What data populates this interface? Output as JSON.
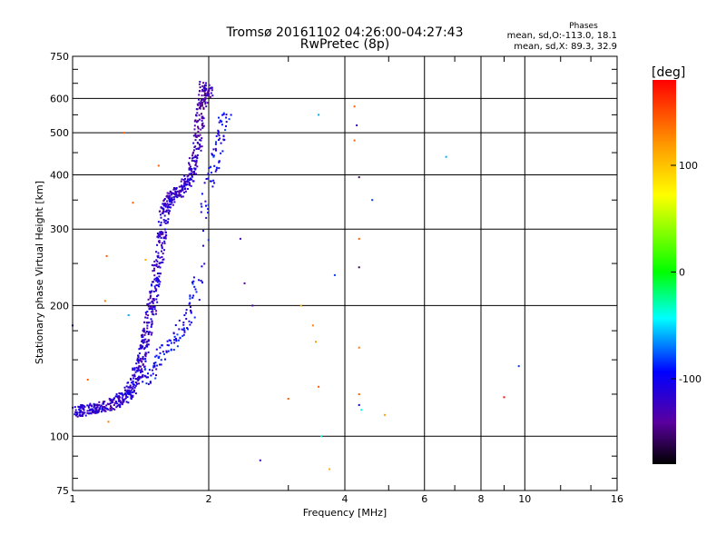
{
  "chart_data": {
    "type": "scatter",
    "title": "Tromsø 20161102 04:26:00-04:27:43",
    "subtitle": "RwPretec (8p)",
    "xlabel": "Frequency [MHz]",
    "ylabel": "Stationary phase Virtual Height [km]",
    "x_scale": "log",
    "y_scale": "log",
    "xlim": [
      1,
      16
    ],
    "ylim": [
      75,
      750
    ],
    "x_ticks": [
      1,
      2,
      4,
      6,
      8,
      10,
      16
    ],
    "x_tick_labels": [
      "1",
      "2",
      "4",
      "6",
      "8",
      "10",
      "16"
    ],
    "y_ticks": [
      75,
      100,
      200,
      300,
      400,
      500,
      600,
      750
    ],
    "y_tick_labels": [
      "75",
      "100",
      "200",
      "300",
      "400",
      "500",
      "600",
      "750"
    ],
    "grid": true,
    "phases_header": "Phases",
    "phases_lines": [
      "mean, sd,O:-113.0, 18.1",
      "mean, sd,X:  89.3, 32.9"
    ],
    "colorbar": {
      "label": "[deg]",
      "range": [
        -180,
        180
      ],
      "ticks": [
        100,
        0,
        -100
      ],
      "tick_labels": [
        "100",
        "0",
        "-100"
      ]
    },
    "O_trace": [
      [
        1.02,
        115,
        -110
      ],
      [
        1.05,
        114,
        -112
      ],
      [
        1.08,
        115,
        -108
      ],
      [
        1.12,
        116,
        -115
      ],
      [
        1.16,
        117,
        -110
      ],
      [
        1.2,
        118,
        -120
      ],
      [
        1.25,
        120,
        -112
      ],
      [
        1.28,
        122,
        -118
      ],
      [
        1.32,
        124,
        -110
      ],
      [
        1.35,
        128,
        -108
      ],
      [
        1.38,
        135,
        -115
      ],
      [
        1.4,
        142,
        -112
      ],
      [
        1.42,
        150,
        -118
      ],
      [
        1.44,
        160,
        -110
      ],
      [
        1.46,
        170,
        -115
      ],
      [
        1.48,
        185,
        -112
      ],
      [
        1.5,
        200,
        -118
      ],
      [
        1.52,
        220,
        -110
      ],
      [
        1.54,
        245,
        -115
      ],
      [
        1.56,
        270,
        -112
      ],
      [
        1.58,
        300,
        -118
      ],
      [
        1.6,
        330,
        -110
      ],
      [
        1.63,
        345,
        -115
      ],
      [
        1.66,
        355,
        -120
      ],
      [
        1.7,
        362,
        -112
      ],
      [
        1.75,
        372,
        -118
      ],
      [
        1.8,
        388,
        -110
      ],
      [
        1.84,
        410,
        -115
      ],
      [
        1.88,
        450,
        -120
      ],
      [
        1.9,
        500,
        -125
      ],
      [
        1.92,
        550,
        -130
      ],
      [
        1.94,
        600,
        -135
      ],
      [
        1.96,
        640,
        -130
      ],
      [
        2.0,
        620,
        -128
      ]
    ],
    "X_trace": [
      [
        1.45,
        135,
        -100
      ],
      [
        1.5,
        140,
        -95
      ],
      [
        1.55,
        150,
        -98
      ],
      [
        1.62,
        160,
        -100
      ],
      [
        1.7,
        170,
        -95
      ],
      [
        1.78,
        180,
        -98
      ],
      [
        1.85,
        200,
        -100
      ],
      [
        1.9,
        230,
        -95
      ],
      [
        2.0,
        380,
        -100
      ],
      [
        2.05,
        420,
        -96
      ],
      [
        2.1,
        470,
        -100
      ],
      [
        2.15,
        520,
        -95
      ],
      [
        2.2,
        560,
        -98
      ]
    ],
    "scatter_points": [
      [
        1.0,
        180,
        -110
      ],
      [
        1.08,
        135,
        150
      ],
      [
        1.18,
        205,
        140
      ],
      [
        1.19,
        260,
        150
      ],
      [
        1.2,
        108,
        140
      ],
      [
        1.3,
        500,
        150
      ],
      [
        1.33,
        190,
        -60
      ],
      [
        1.36,
        345,
        150
      ],
      [
        1.45,
        255,
        120
      ],
      [
        1.55,
        420,
        150
      ],
      [
        2.35,
        285,
        -120
      ],
      [
        2.4,
        225,
        -130
      ],
      [
        2.5,
        200,
        -130
      ],
      [
        2.6,
        88,
        -120
      ],
      [
        3.0,
        122,
        150
      ],
      [
        3.2,
        200,
        120
      ],
      [
        3.4,
        180,
        140
      ],
      [
        3.45,
        165,
        130
      ],
      [
        3.5,
        550,
        -60
      ],
      [
        3.5,
        130,
        150
      ],
      [
        3.55,
        100,
        -40
      ],
      [
        3.7,
        84,
        120
      ],
      [
        3.8,
        235,
        -80
      ],
      [
        4.2,
        575,
        150
      ],
      [
        4.2,
        480,
        150
      ],
      [
        4.25,
        520,
        -120
      ],
      [
        4.3,
        395,
        -150
      ],
      [
        4.3,
        285,
        150
      ],
      [
        4.3,
        245,
        -150
      ],
      [
        4.3,
        160,
        140
      ],
      [
        4.3,
        125,
        150
      ],
      [
        4.3,
        118,
        -90
      ],
      [
        4.35,
        115,
        -40
      ],
      [
        4.6,
        350,
        -80
      ],
      [
        4.9,
        112,
        130
      ],
      [
        6.7,
        440,
        -60
      ],
      [
        9.0,
        123,
        175
      ],
      [
        9.7,
        145,
        -80
      ]
    ]
  }
}
